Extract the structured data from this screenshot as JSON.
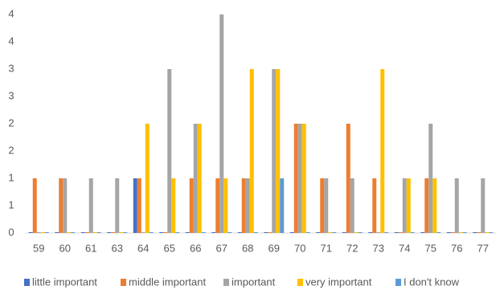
{
  "chart_data": {
    "type": "bar",
    "categories": [
      "59",
      "60",
      "61",
      "63",
      "64",
      "65",
      "66",
      "67",
      "68",
      "69",
      "70",
      "71",
      "72",
      "73",
      "74",
      "75",
      "76",
      "77"
    ],
    "series": [
      {
        "name": "little important",
        "color": "#4472c4",
        "values": [
          0,
          0,
          0,
          0,
          1,
          0,
          0,
          0,
          0,
          0,
          0,
          0,
          0,
          0,
          0,
          0,
          0,
          0
        ]
      },
      {
        "name": "middle important",
        "color": "#ed7d31",
        "values": [
          1,
          1,
          0,
          0,
          1,
          0,
          1,
          1,
          1,
          0,
          2,
          1,
          2,
          1,
          0,
          1,
          0,
          0
        ]
      },
      {
        "name": "important",
        "color": "#a5a5a5",
        "values": [
          0,
          1,
          1,
          1,
          0,
          3,
          2,
          4,
          1,
          3,
          2,
          1,
          1,
          0,
          1,
          2,
          1,
          1
        ]
      },
      {
        "name": "very important",
        "color": "#ffc000",
        "values": [
          0,
          0,
          0,
          0,
          2,
          1,
          2,
          1,
          3,
          3,
          2,
          0,
          0,
          3,
          1,
          1,
          0,
          0
        ]
      },
      {
        "name": "I don't know",
        "color": "#5b9bd5",
        "values": [
          0,
          0,
          0,
          0,
          0,
          0,
          0,
          0,
          0,
          1,
          0,
          0,
          0,
          0,
          0,
          0,
          0,
          0
        ]
      }
    ],
    "ylim": [
      0,
      4
    ],
    "yticks": [
      0,
      {
        "value": 0.5,
        "label": "1"
      },
      1,
      {
        "value": 1.5,
        "label": "2"
      },
      2,
      {
        "value": 2.5,
        "label": "3"
      },
      3,
      {
        "value": 3.5,
        "label": "4"
      },
      4
    ],
    "grid": false,
    "legend": "bottom"
  }
}
